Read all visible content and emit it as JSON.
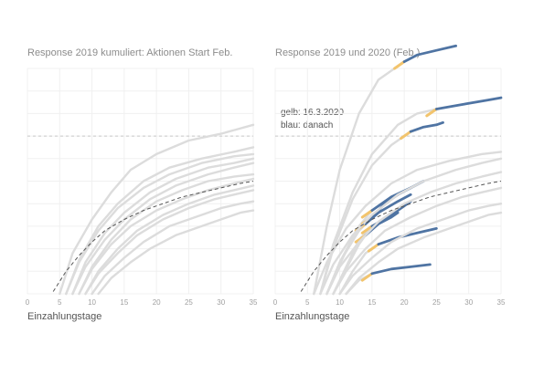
{
  "chart_data": [
    {
      "type": "line",
      "title": "Response 2019 kumuliert: Aktionen Start Feb.",
      "xlabel": "Einzahlungstage",
      "ylabel": "",
      "xlim": [
        0,
        35
      ],
      "ylim": [
        0,
        1
      ],
      "xticks": [
        0,
        5,
        10,
        15,
        20,
        25,
        30,
        35
      ],
      "grid": true,
      "reference_line": {
        "style": "dashed",
        "y": 0.7
      },
      "trend_line": {
        "style": "dashed",
        "x": [
          4,
          6,
          8,
          10,
          12,
          15,
          18,
          21,
          24,
          27,
          30,
          33,
          35
        ],
        "y": [
          0.01,
          0.1,
          0.17,
          0.23,
          0.28,
          0.33,
          0.37,
          0.4,
          0.43,
          0.45,
          0.47,
          0.49,
          0.5
        ]
      },
      "series": [
        {
          "x": [
            5,
            7,
            10,
            13,
            16,
            20,
            25,
            30,
            35
          ],
          "y": [
            0,
            0.18,
            0.33,
            0.45,
            0.55,
            0.62,
            0.68,
            0.71,
            0.75
          ]
        },
        {
          "x": [
            6,
            8,
            11,
            14,
            18,
            22,
            27,
            32,
            35
          ],
          "y": [
            0,
            0.15,
            0.3,
            0.4,
            0.5,
            0.56,
            0.6,
            0.63,
            0.65
          ]
        },
        {
          "x": [
            6,
            8,
            11,
            14,
            18,
            22,
            27,
            32,
            35
          ],
          "y": [
            0,
            0.14,
            0.28,
            0.38,
            0.47,
            0.53,
            0.58,
            0.61,
            0.62
          ]
        },
        {
          "x": [
            7,
            9,
            12,
            15,
            19,
            23,
            28,
            32,
            35
          ],
          "y": [
            0,
            0.14,
            0.27,
            0.36,
            0.45,
            0.51,
            0.56,
            0.58,
            0.6
          ]
        },
        {
          "x": [
            7,
            9,
            12,
            15,
            19,
            23,
            28,
            32,
            35
          ],
          "y": [
            0,
            0.12,
            0.24,
            0.33,
            0.42,
            0.48,
            0.53,
            0.56,
            0.58
          ]
        },
        {
          "x": [
            8,
            10,
            13,
            16,
            20,
            24,
            28,
            32,
            35
          ],
          "y": [
            0,
            0.12,
            0.24,
            0.33,
            0.41,
            0.46,
            0.5,
            0.52,
            0.53
          ]
        },
        {
          "x": [
            8,
            10,
            13,
            16,
            20,
            24,
            28,
            32,
            35
          ],
          "y": [
            0,
            0.11,
            0.22,
            0.3,
            0.37,
            0.42,
            0.46,
            0.49,
            0.51
          ]
        },
        {
          "x": [
            9,
            11,
            14,
            17,
            21,
            25,
            29,
            32,
            35
          ],
          "y": [
            0,
            0.1,
            0.2,
            0.28,
            0.35,
            0.4,
            0.44,
            0.46,
            0.48
          ]
        },
        {
          "x": [
            9,
            11,
            14,
            17,
            21,
            25,
            29,
            32,
            35
          ],
          "y": [
            0,
            0.09,
            0.18,
            0.26,
            0.33,
            0.38,
            0.42,
            0.44,
            0.46
          ]
        },
        {
          "x": [
            10,
            12,
            15,
            18,
            22,
            26,
            30,
            33,
            35
          ],
          "y": [
            0,
            0.08,
            0.16,
            0.23,
            0.3,
            0.34,
            0.38,
            0.4,
            0.41
          ]
        },
        {
          "x": [
            11,
            13,
            16,
            19,
            23,
            27,
            31,
            33,
            35
          ],
          "y": [
            0,
            0.07,
            0.14,
            0.2,
            0.26,
            0.3,
            0.34,
            0.36,
            0.37
          ]
        }
      ]
    },
    {
      "type": "line",
      "title": "Response 2019 und 2020 (Feb.)",
      "xlabel": "Einzahlungstage",
      "ylabel": "",
      "xlim": [
        0,
        35
      ],
      "ylim": [
        0,
        1
      ],
      "xticks": [
        0,
        5,
        10,
        15,
        20,
        25,
        30,
        35
      ],
      "grid": true,
      "reference_line": {
        "style": "dashed",
        "y": 0.7
      },
      "trend_line": {
        "style": "dashed",
        "x": [
          4,
          6,
          8,
          10,
          12,
          15,
          18,
          21,
          24,
          27,
          30,
          33,
          35
        ],
        "y": [
          0.01,
          0.1,
          0.17,
          0.23,
          0.28,
          0.33,
          0.37,
          0.4,
          0.43,
          0.45,
          0.47,
          0.49,
          0.5
        ]
      },
      "annotation": [
        "gelb: 16.3.2020",
        "blau: danach"
      ],
      "series": [
        {
          "x": [
            6,
            8,
            10,
            13,
            16,
            20
          ],
          "y": [
            0,
            0.3,
            0.55,
            0.8,
            0.95,
            1.03
          ],
          "after_x": [
            20,
            22,
            25,
            28
          ],
          "after_y": [
            1.03,
            1.06,
            1.08,
            1.1
          ]
        },
        {
          "x": [
            7,
            9,
            12,
            15,
            18,
            20,
            21
          ],
          "y": [
            0,
            0.2,
            0.42,
            0.57,
            0.66,
            0.7,
            0.72
          ],
          "after_x": [
            21,
            23,
            25,
            26
          ],
          "after_y": [
            0.72,
            0.74,
            0.75,
            0.76
          ]
        },
        {
          "x": [
            7,
            9,
            12,
            15,
            19,
            22,
            25
          ],
          "y": [
            0,
            0.22,
            0.45,
            0.62,
            0.75,
            0.8,
            0.82
          ],
          "after_x": [
            25,
            29,
            33,
            35
          ],
          "after_y": [
            0.82,
            0.84,
            0.86,
            0.87
          ]
        },
        {
          "x": [
            8,
            10,
            13,
            15
          ],
          "y": [
            0,
            0.14,
            0.3,
            0.37
          ],
          "after_x": [
            15,
            18,
            21,
            23
          ],
          "after_y": [
            0.37,
            0.43,
            0.47,
            0.5
          ]
        },
        {
          "x": [
            8,
            10,
            13,
            15
          ],
          "y": [
            0,
            0.14,
            0.28,
            0.34
          ],
          "after_x": [
            15,
            17,
            19,
            21
          ],
          "after_y": [
            0.34,
            0.4,
            0.44,
            0.47
          ]
        },
        {
          "x": [
            8,
            10,
            12,
            14
          ],
          "y": [
            0,
            0.13,
            0.25,
            0.31
          ],
          "after_x": [
            14,
            16,
            19,
            21
          ],
          "after_y": [
            0.31,
            0.36,
            0.41,
            0.44
          ]
        },
        {
          "x": [
            9,
            11,
            13,
            15
          ],
          "y": [
            0,
            0.12,
            0.24,
            0.3
          ],
          "after_x": [
            15,
            18,
            20,
            21
          ],
          "after_y": [
            0.3,
            0.35,
            0.39,
            0.41
          ]
        },
        {
          "x": [
            9,
            11,
            13,
            14
          ],
          "y": [
            0,
            0.11,
            0.22,
            0.26
          ],
          "after_x": [
            14,
            16,
            18,
            19
          ],
          "after_y": [
            0.26,
            0.31,
            0.34,
            0.36
          ]
        },
        {
          "x": [
            10,
            12,
            14,
            16
          ],
          "y": [
            0,
            0.1,
            0.18,
            0.22
          ],
          "after_x": [
            16,
            19,
            22,
            25
          ],
          "after_y": [
            0.22,
            0.25,
            0.27,
            0.29
          ]
        },
        {
          "x": [
            11,
            13,
            15
          ],
          "y": [
            0,
            0.06,
            0.09
          ],
          "after_x": [
            15,
            18,
            21,
            24
          ],
          "after_y": [
            0.09,
            0.11,
            0.12,
            0.13
          ]
        },
        {
          "x": [
            6,
            8,
            11,
            14,
            18,
            22,
            27,
            32,
            35
          ],
          "y": [
            0,
            0.14,
            0.29,
            0.39,
            0.49,
            0.55,
            0.59,
            0.62,
            0.63
          ]
        },
        {
          "x": [
            7,
            9,
            12,
            15,
            19,
            23,
            28,
            32,
            35
          ],
          "y": [
            0,
            0.13,
            0.26,
            0.35,
            0.44,
            0.5,
            0.55,
            0.58,
            0.6
          ]
        },
        {
          "x": [
            8,
            10,
            13,
            16,
            20,
            24,
            28,
            32,
            35
          ],
          "y": [
            0,
            0.12,
            0.23,
            0.32,
            0.4,
            0.45,
            0.49,
            0.52,
            0.54
          ]
        },
        {
          "x": [
            9,
            11,
            14,
            17,
            21,
            25,
            29,
            32,
            35
          ],
          "y": [
            0,
            0.1,
            0.2,
            0.28,
            0.34,
            0.39,
            0.43,
            0.45,
            0.47
          ]
        },
        {
          "x": [
            10,
            12,
            15,
            18,
            22,
            26,
            30,
            33,
            35
          ],
          "y": [
            0,
            0.08,
            0.16,
            0.23,
            0.29,
            0.33,
            0.37,
            0.39,
            0.4
          ]
        },
        {
          "x": [
            11,
            13,
            16,
            19,
            23,
            27,
            31,
            33,
            35
          ],
          "y": [
            0,
            0.07,
            0.14,
            0.2,
            0.25,
            0.29,
            0.33,
            0.35,
            0.36
          ]
        }
      ]
    }
  ],
  "colors": {
    "grey": "#dcdcdc",
    "yellow": "#f2c46d",
    "blue": "#4f74a3",
    "dash": "#555555",
    "ref": "#c8c8c8",
    "grid": "#f0f0f0"
  }
}
